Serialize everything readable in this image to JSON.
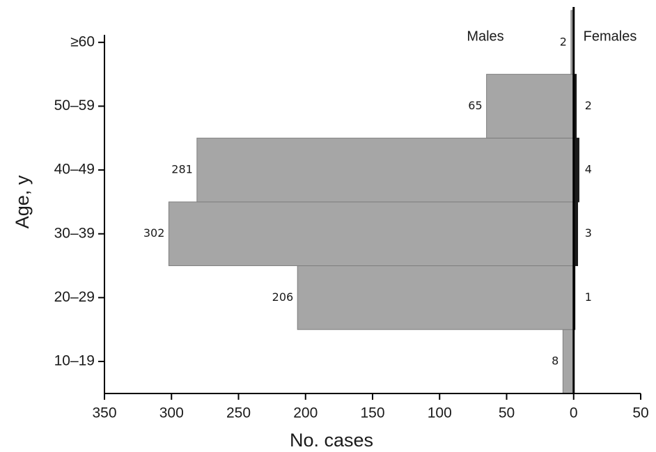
{
  "chart_data": {
    "type": "pyramid",
    "xlabel": "No. cases",
    "ylabel": "Age, y",
    "categories": [
      "10–19",
      "20–29",
      "30–39",
      "40–49",
      "50–59",
      "≥60"
    ],
    "series": [
      {
        "name": "Males",
        "color": "#a6a6a6",
        "values": [
          -8,
          -206,
          -302,
          -281,
          -65,
          -2
        ],
        "value_labels": [
          "8",
          "206",
          "302",
          "281",
          "65",
          "2"
        ]
      },
      {
        "name": "Females",
        "color": "#1a1a1a",
        "values": [
          null,
          1,
          3,
          4,
          2,
          null
        ]
      }
    ],
    "xlim": [
      -350,
      50
    ],
    "xticks": [
      {
        "value": -350,
        "label": "350"
      },
      {
        "value": -300,
        "label": "300"
      },
      {
        "value": -250,
        "label": "250"
      },
      {
        "value": -200,
        "label": "200"
      },
      {
        "value": -150,
        "label": "150"
      },
      {
        "value": -100,
        "label": "100"
      },
      {
        "value": -50,
        "label": "50"
      },
      0,
      50
    ]
  }
}
